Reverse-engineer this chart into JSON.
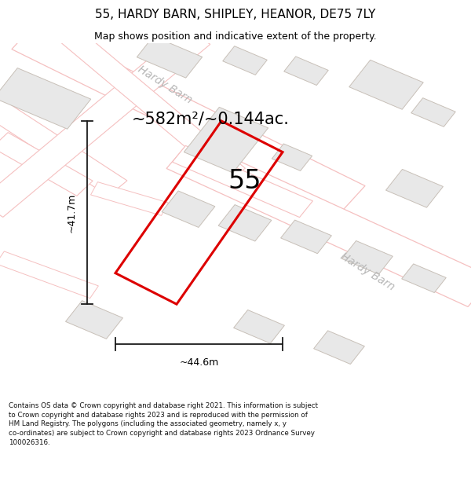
{
  "title_line1": "55, HARDY BARN, SHIPLEY, HEANOR, DE75 7LY",
  "title_line2": "Map shows position and indicative extent of the property.",
  "area_text": "~582m²/~0.144ac.",
  "label_55": "55",
  "dim_width": "~44.6m",
  "dim_height": "~41.7m",
  "road_label1": "Hardy Barn",
  "road_label2": "Hardy Barn",
  "footer_text": "Contains OS data © Crown copyright and database right 2021. This information is subject to Crown copyright and database rights 2023 and is reproduced with the permission of HM Land Registry. The polygons (including the associated geometry, namely x, y co-ordinates) are subject to Crown copyright and database rights 2023 Ordnance Survey 100026316.",
  "map_bg": "#f8f8f8",
  "road_color": "#f5c0c0",
  "building_fill": "#e8e8e8",
  "building_outline": "#c8c0b8",
  "plot_outline": "#dd0000",
  "plot_lw": 2.2,
  "dim_color": "#1a1a1a",
  "footer_color": "#111111",
  "title_fs": 11,
  "subtitle_fs": 9,
  "area_fs": 15,
  "label_fs": 24,
  "dim_fs": 9,
  "road_label_fs": 10,
  "footer_fs": 6.3
}
